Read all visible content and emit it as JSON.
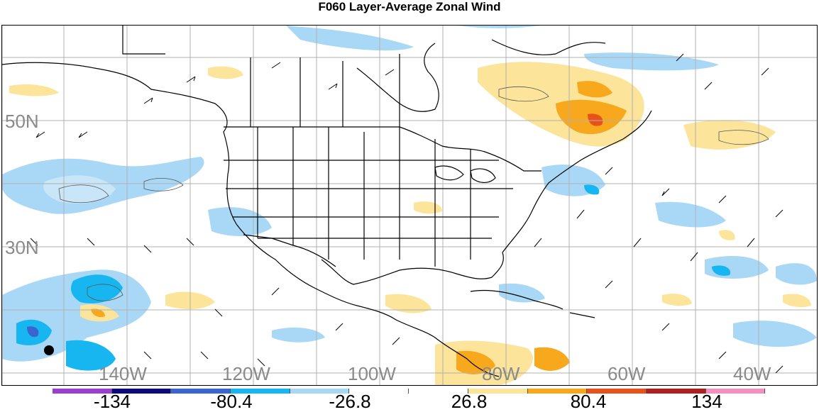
{
  "title": "F060 Layer-Average Zonal Wind",
  "map": {
    "lat_labels": [
      "50N",
      "30N"
    ],
    "lon_labels": [
      "140W",
      "120W",
      "100W",
      "80W",
      "60W",
      "40W"
    ]
  },
  "colorbar": {
    "colors": [
      "#9a3fd0",
      "#0a0a7a",
      "#3a64d0",
      "#18b6f0",
      "#a8d8f6",
      "#ffffff",
      "#ffffff",
      "#fce49a",
      "#f7a81c",
      "#e8521a",
      "#b02020",
      "#f58fbf"
    ],
    "tick_labels": [
      "-134",
      "-80.4",
      "-26.8",
      "26.8",
      "80.4",
      "134"
    ]
  }
}
